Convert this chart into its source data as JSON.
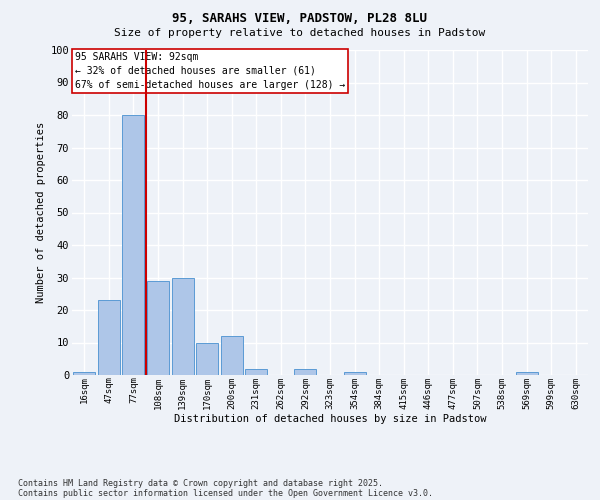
{
  "title1": "95, SARAHS VIEW, PADSTOW, PL28 8LU",
  "title2": "Size of property relative to detached houses in Padstow",
  "xlabel": "Distribution of detached houses by size in Padstow",
  "ylabel": "Number of detached properties",
  "categories": [
    "16sqm",
    "47sqm",
    "77sqm",
    "108sqm",
    "139sqm",
    "170sqm",
    "200sqm",
    "231sqm",
    "262sqm",
    "292sqm",
    "323sqm",
    "354sqm",
    "384sqm",
    "415sqm",
    "446sqm",
    "477sqm",
    "507sqm",
    "538sqm",
    "569sqm",
    "599sqm",
    "630sqm"
  ],
  "values": [
    1,
    23,
    80,
    29,
    30,
    10,
    12,
    2,
    0,
    2,
    0,
    1,
    0,
    0,
    0,
    0,
    0,
    0,
    1,
    0,
    0
  ],
  "bar_color": "#aec6e8",
  "bar_edge_color": "#5b9bd5",
  "vline_x": 2.5,
  "vline_color": "#cc0000",
  "annotation_title": "95 SARAHS VIEW: 92sqm",
  "annotation_line2": "← 32% of detached houses are smaller (61)",
  "annotation_line3": "67% of semi-detached houses are larger (128) →",
  "annotation_box_color": "#ffffff",
  "annotation_box_edge": "#cc0000",
  "ylim": [
    0,
    100
  ],
  "yticks": [
    0,
    10,
    20,
    30,
    40,
    50,
    60,
    70,
    80,
    90,
    100
  ],
  "background_color": "#eef2f8",
  "footer1": "Contains HM Land Registry data © Crown copyright and database right 2025.",
  "footer2": "Contains public sector information licensed under the Open Government Licence v3.0.",
  "grid_color": "#ffffff",
  "figsize": [
    6.0,
    5.0
  ],
  "dpi": 100
}
